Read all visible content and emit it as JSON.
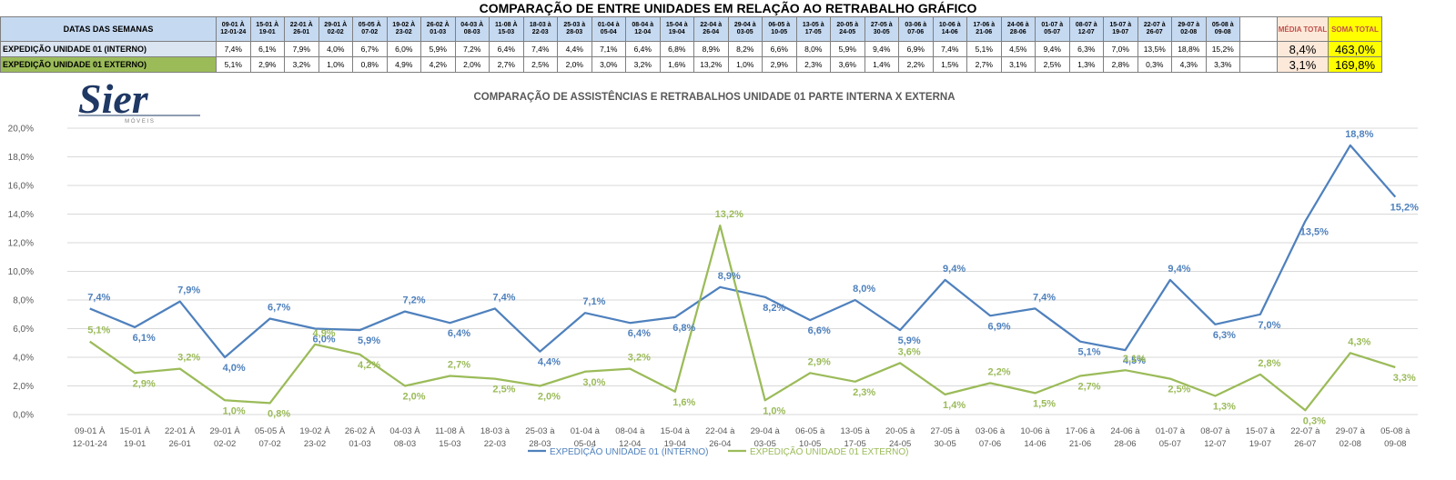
{
  "sheet_title": "COMPARAÇÃO DE ENTRE UNIDADES EM RELAÇÃO AO RETRABALHO GRÁFICO",
  "table": {
    "header_label": "DATAS DAS SEMANAS",
    "week_headers": [
      [
        "09-01 À",
        "12-01-24"
      ],
      [
        "15-01 À",
        "19-01"
      ],
      [
        "22-01 À",
        "26-01"
      ],
      [
        "29-01 À",
        "02-02"
      ],
      [
        "05-05 À",
        "07-02"
      ],
      [
        "19-02 À",
        "23-02"
      ],
      [
        "26-02 À",
        "01-03"
      ],
      [
        "04-03 À",
        "08-03"
      ],
      [
        "11-08 À",
        "15-03"
      ],
      [
        "18-03 à",
        "22-03"
      ],
      [
        "25-03 à",
        "28-03"
      ],
      [
        "01-04 à",
        "05-04"
      ],
      [
        "08-04 à",
        "12-04"
      ],
      [
        "15-04 à",
        "19-04"
      ],
      [
        "22-04 à",
        "26-04"
      ],
      [
        "29-04 à",
        "03-05"
      ],
      [
        "06-05 à",
        "10-05"
      ],
      [
        "13-05 à",
        "17-05"
      ],
      [
        "20-05 à",
        "24-05"
      ],
      [
        "27-05 à",
        "30-05"
      ],
      [
        "03-06 à",
        "07-06"
      ],
      [
        "10-06 à",
        "14-06"
      ],
      [
        "17-06 à",
        "21-06"
      ],
      [
        "24-06 à",
        "28-06"
      ],
      [
        "01-07 à",
        "05-07"
      ],
      [
        "08-07 à",
        "12-07"
      ],
      [
        "15-07 à",
        "19-07"
      ],
      [
        "22-07 à",
        "26-07"
      ],
      [
        "29-07 à",
        "02-08"
      ],
      [
        "05-08 à",
        "09-08"
      ]
    ],
    "media_header": "MÉDIA TOTAL",
    "soma_header": "SOMA TOTAL",
    "rows": [
      {
        "label": "EXPEDIÇÃO UNIDADE 01 (INTERNO)",
        "values": [
          "7,4%",
          "6,1%",
          "7,9%",
          "4,0%",
          "6,7%",
          "6,0%",
          "5,9%",
          "7,2%",
          "6,4%",
          "7,4%",
          "4,4%",
          "7,1%",
          "6,4%",
          "6,8%",
          "8,9%",
          "8,2%",
          "6,6%",
          "8,0%",
          "5,9%",
          "9,4%",
          "6,9%",
          "7,4%",
          "5,1%",
          "4,5%",
          "9,4%",
          "6,3%",
          "7,0%",
          "13,5%",
          "18,8%",
          "15,2%"
        ],
        "media": "8,4%",
        "soma": "463,0%"
      },
      {
        "label": "EXPEDIÇÃO UNIDADE 01 EXTERNO)",
        "values": [
          "5,1%",
          "2,9%",
          "3,2%",
          "1,0%",
          "0,8%",
          "4,9%",
          "4,2%",
          "2,0%",
          "2,7%",
          "2,5%",
          "2,0%",
          "3,0%",
          "3,2%",
          "1,6%",
          "13,2%",
          "1,0%",
          "2,9%",
          "2,3%",
          "3,6%",
          "1,4%",
          "2,2%",
          "1,5%",
          "2,7%",
          "3,1%",
          "2,5%",
          "1,3%",
          "2,8%",
          "0,3%",
          "4,3%",
          "3,3%"
        ],
        "media": "3,1%",
        "soma": "169,8%"
      }
    ]
  },
  "logo": {
    "text": "Sier",
    "subtext": "M Ó V E I S",
    "color": "#1f3864"
  },
  "chart_data": {
    "type": "line",
    "title": "COMPARAÇÃO DE ASSISTÊNCIAS E RETRABALHOS UNIDADE 01 PARTE INTERNA X EXTERNA",
    "categories": [
      [
        "09-01 À",
        "12-01-24"
      ],
      [
        "15-01 À",
        "19-01"
      ],
      [
        "22-01 À",
        "26-01"
      ],
      [
        "29-01 À",
        "02-02"
      ],
      [
        "05-05 À",
        "07-02"
      ],
      [
        "19-02 À",
        "23-02"
      ],
      [
        "26-02 À",
        "01-03"
      ],
      [
        "04-03 À",
        "08-03"
      ],
      [
        "11-08 À",
        "15-03"
      ],
      [
        "18-03 à",
        "22-03"
      ],
      [
        "25-03 à",
        "28-03"
      ],
      [
        "01-04 à",
        "05-04"
      ],
      [
        "08-04 à",
        "12-04"
      ],
      [
        "15-04 à",
        "19-04"
      ],
      [
        "22-04 à",
        "26-04"
      ],
      [
        "29-04 à",
        "03-05"
      ],
      [
        "06-05 à",
        "10-05"
      ],
      [
        "13-05 à",
        "17-05"
      ],
      [
        "20-05 à",
        "24-05"
      ],
      [
        "27-05 à",
        "30-05"
      ],
      [
        "03-06 à",
        "07-06"
      ],
      [
        "10-06 à",
        "14-06"
      ],
      [
        "17-06 à",
        "21-06"
      ],
      [
        "24-06 à",
        "28-06"
      ],
      [
        "01-07 à",
        "05-07"
      ],
      [
        "08-07 à",
        "12-07"
      ],
      [
        "15-07 à",
        "19-07"
      ],
      [
        "22-07 à",
        "26-07"
      ],
      [
        "29-07 à",
        "02-08"
      ],
      [
        "05-08 à",
        "09-08"
      ]
    ],
    "series": [
      {
        "name": "EXPEDIÇÃO UNIDADE 01 (INTERNO)",
        "color": "#4f81bd",
        "values": [
          7.4,
          6.1,
          7.9,
          4.0,
          6.7,
          6.0,
          5.9,
          7.2,
          6.4,
          7.4,
          4.4,
          7.1,
          6.4,
          6.8,
          8.9,
          8.2,
          6.6,
          8.0,
          5.9,
          9.4,
          6.9,
          7.4,
          5.1,
          4.5,
          9.4,
          6.3,
          7.0,
          13.5,
          18.8,
          15.2
        ],
        "labels": [
          "7,4%",
          "6,1%",
          "7,9%",
          "4,0%",
          "6,7%",
          "6,0%",
          "5,9%",
          "7,2%",
          "6,4%",
          "7,4%",
          "4,4%",
          "7,1%",
          "6,4%",
          "6,8%",
          "8,9%",
          "8,2%",
          "6,6%",
          "8,0%",
          "5,9%",
          "9,4%",
          "6,9%",
          "7,4%",
          "5,1%",
          "4,5%",
          "9,4%",
          "6,3%",
          "7,0%",
          "13,5%",
          "18,8%",
          "15,2%"
        ]
      },
      {
        "name": "EXPEDIÇÃO UNIDADE 01 EXTERNO)",
        "color": "#9bbb59",
        "values": [
          5.1,
          2.9,
          3.2,
          1.0,
          0.8,
          4.9,
          4.2,
          2.0,
          2.7,
          2.5,
          2.0,
          3.0,
          3.2,
          1.6,
          13.2,
          1.0,
          2.9,
          2.3,
          3.6,
          1.4,
          2.2,
          1.5,
          2.7,
          3.1,
          2.5,
          1.3,
          2.8,
          0.3,
          4.3,
          3.3
        ],
        "labels": [
          "5,1%",
          "2,9%",
          "3,2%",
          "1,0%",
          "0,8%",
          "4,9%",
          "4,2%",
          "2,0%",
          "2,7%",
          "2,5%",
          "2,0%",
          "3,0%",
          "3,2%",
          "1,6%",
          "13,2%",
          "1,0%",
          "2,9%",
          "2,3%",
          "3,6%",
          "1,4%",
          "2,2%",
          "1,5%",
          "2,7%",
          "3,1%",
          "2,5%",
          "1,3%",
          "2,8%",
          "0,3%",
          "4,3%",
          "3,3%"
        ]
      }
    ],
    "y_ticks": [
      "0,0%",
      "2,0%",
      "4,0%",
      "6,0%",
      "8,0%",
      "10,0%",
      "12,0%",
      "14,0%",
      "16,0%",
      "18,0%",
      "20,0%"
    ],
    "ylim": [
      0,
      20
    ],
    "grid": true,
    "legend_position": "bottom"
  }
}
